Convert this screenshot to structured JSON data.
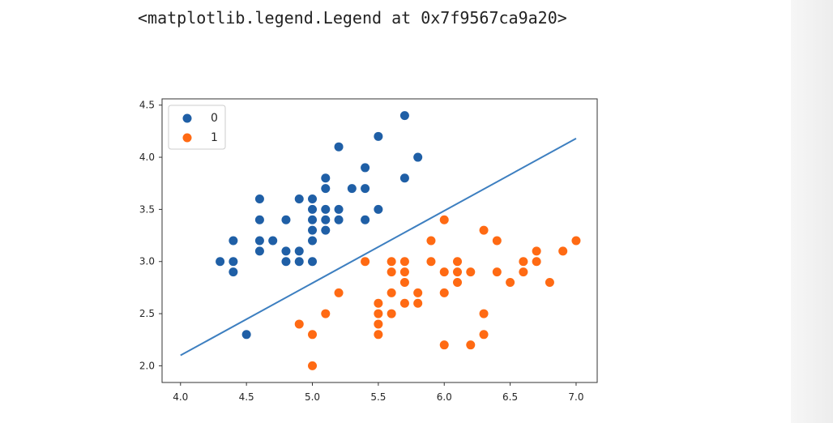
{
  "output": {
    "text": "<matplotlib.legend.Legend at 0x7f9567ca9a20>"
  },
  "colors": {
    "series0": "#1f5fa6",
    "series1": "#ff6a13",
    "line": "#3d7fc0",
    "axes": "#333333",
    "gutter": "#eeeeee"
  },
  "chart_data": {
    "type": "scatter",
    "title": "",
    "xlabel": "",
    "ylabel": "",
    "xlim": [
      3.86,
      7.16
    ],
    "ylim": [
      1.84,
      4.56
    ],
    "xticks": [
      4.0,
      4.5,
      5.0,
      5.5,
      6.0,
      6.5,
      7.0
    ],
    "xtick_labels": [
      "4.0",
      "4.5",
      "5.0",
      "5.5",
      "6.0",
      "6.5",
      "7.0"
    ],
    "yticks": [
      2.0,
      2.5,
      3.0,
      3.5,
      4.0,
      4.5
    ],
    "ytick_labels": [
      "2.0",
      "2.5",
      "3.0",
      "3.5",
      "4.0",
      "4.5"
    ],
    "grid": false,
    "legend": {
      "location": "upper-left"
    },
    "series": [
      {
        "name": "0",
        "color": "#1f5fa6",
        "points": [
          [
            4.3,
            3.0
          ],
          [
            4.4,
            3.2
          ],
          [
            4.4,
            3.0
          ],
          [
            4.4,
            2.9
          ],
          [
            4.5,
            2.3
          ],
          [
            4.6,
            3.6
          ],
          [
            4.6,
            3.4
          ],
          [
            4.6,
            3.2
          ],
          [
            4.6,
            3.1
          ],
          [
            4.7,
            3.2
          ],
          [
            4.8,
            3.4
          ],
          [
            4.8,
            3.1
          ],
          [
            4.8,
            3.0
          ],
          [
            4.9,
            3.6
          ],
          [
            4.9,
            3.1
          ],
          [
            4.9,
            3.0
          ],
          [
            5.0,
            3.6
          ],
          [
            5.0,
            3.5
          ],
          [
            5.0,
            3.4
          ],
          [
            5.0,
            3.3
          ],
          [
            5.0,
            3.2
          ],
          [
            5.0,
            3.0
          ],
          [
            5.1,
            3.8
          ],
          [
            5.1,
            3.7
          ],
          [
            5.1,
            3.5
          ],
          [
            5.1,
            3.4
          ],
          [
            5.1,
            3.3
          ],
          [
            5.2,
            4.1
          ],
          [
            5.2,
            3.5
          ],
          [
            5.2,
            3.4
          ],
          [
            5.3,
            3.7
          ],
          [
            5.4,
            3.9
          ],
          [
            5.4,
            3.7
          ],
          [
            5.4,
            3.4
          ],
          [
            5.5,
            4.2
          ],
          [
            5.5,
            3.5
          ],
          [
            5.7,
            4.4
          ],
          [
            5.7,
            3.8
          ],
          [
            5.8,
            4.0
          ]
        ]
      },
      {
        "name": "1",
        "color": "#ff6a13",
        "points": [
          [
            4.9,
            2.4
          ],
          [
            5.0,
            2.3
          ],
          [
            5.0,
            2.0
          ],
          [
            5.1,
            2.5
          ],
          [
            5.2,
            2.7
          ],
          [
            5.4,
            3.0
          ],
          [
            5.5,
            2.6
          ],
          [
            5.5,
            2.5
          ],
          [
            5.5,
            2.4
          ],
          [
            5.5,
            2.3
          ],
          [
            5.6,
            3.0
          ],
          [
            5.6,
            2.9
          ],
          [
            5.6,
            2.7
          ],
          [
            5.6,
            2.5
          ],
          [
            5.7,
            3.0
          ],
          [
            5.7,
            2.9
          ],
          [
            5.7,
            2.8
          ],
          [
            5.7,
            2.6
          ],
          [
            5.8,
            2.7
          ],
          [
            5.8,
            2.6
          ],
          [
            5.9,
            3.2
          ],
          [
            5.9,
            3.0
          ],
          [
            6.0,
            3.4
          ],
          [
            6.0,
            2.9
          ],
          [
            6.0,
            2.7
          ],
          [
            6.0,
            2.2
          ],
          [
            6.1,
            3.0
          ],
          [
            6.1,
            2.9
          ],
          [
            6.1,
            2.8
          ],
          [
            6.2,
            2.9
          ],
          [
            6.2,
            2.2
          ],
          [
            6.3,
            3.3
          ],
          [
            6.3,
            2.5
          ],
          [
            6.3,
            2.3
          ],
          [
            6.4,
            3.2
          ],
          [
            6.4,
            2.9
          ],
          [
            6.5,
            2.8
          ],
          [
            6.6,
            3.0
          ],
          [
            6.6,
            2.9
          ],
          [
            6.7,
            3.1
          ],
          [
            6.7,
            3.0
          ],
          [
            6.8,
            2.8
          ],
          [
            6.9,
            3.1
          ],
          [
            7.0,
            3.2
          ]
        ]
      }
    ],
    "decision_line": {
      "points": [
        [
          4.0,
          2.1
        ],
        [
          7.0,
          4.18
        ]
      ]
    }
  }
}
